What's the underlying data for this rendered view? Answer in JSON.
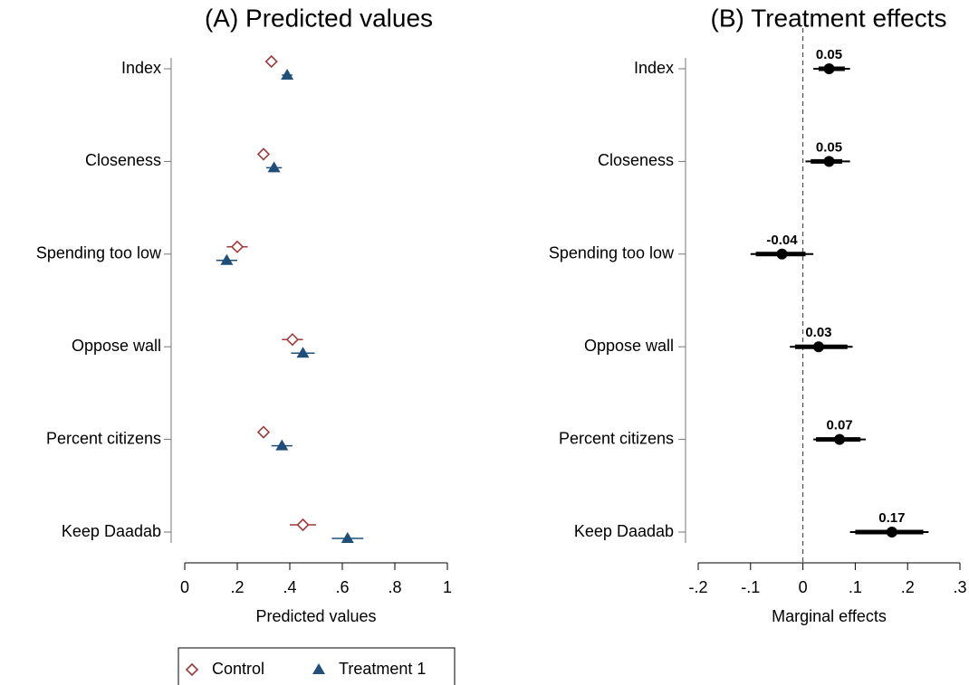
{
  "chart_data": [
    {
      "type": "dot",
      "title": "(A) Predicted values",
      "x_label": "Predicted values",
      "categories": [
        "Index",
        "Closeness",
        "Spending too low",
        "Oppose wall",
        "Percent citizens",
        "Keep Daadab"
      ],
      "xlim": [
        0,
        1
      ],
      "xticks": [
        0,
        {
          "value": 0.2,
          "label": ".2"
        },
        {
          "value": 0.4,
          "label": ".4"
        },
        {
          "value": 0.6,
          "label": ".6"
        },
        {
          "value": 0.8,
          "label": ".8"
        },
        1
      ],
      "legend": "bottom",
      "series": [
        {
          "name": "Control",
          "color": "#9e3a3a",
          "marker": "diamond",
          "values": [
            0.33,
            0.3,
            0.2,
            0.41,
            0.3,
            0.45
          ],
          "errors": [
            0.02,
            0.02,
            0.04,
            0.04,
            0.02,
            0.05
          ]
        },
        {
          "name": "Treatment 1",
          "color": "#1f4e79",
          "marker": "triangle",
          "values": [
            0.39,
            0.34,
            0.16,
            0.45,
            0.37,
            0.62
          ],
          "errors": [
            0.02,
            0.03,
            0.04,
            0.045,
            0.04,
            0.06
          ]
        }
      ]
    },
    {
      "type": "coefficient",
      "title": "(B) Treatment effects",
      "x_label": "Marginal effects",
      "categories": [
        "Index",
        "Closeness",
        "Spending too low",
        "Oppose wall",
        "Percent citizens",
        "Keep Daadab"
      ],
      "xlim": [
        -0.2,
        0.3
      ],
      "xticks": [
        {
          "value": -0.2,
          "label": "-.2"
        },
        {
          "value": -0.1,
          "label": "-.1"
        },
        0,
        {
          "value": 0.1,
          "label": ".1"
        },
        {
          "value": 0.2,
          "label": ".2"
        },
        {
          "value": 0.3,
          "label": ".3"
        }
      ],
      "zero_line": true,
      "color": "#000000",
      "values": [
        0.05,
        0.05,
        -0.04,
        0.03,
        0.07,
        0.17
      ],
      "ci95_low": [
        0.02,
        0.005,
        -0.1,
        -0.025,
        0.02,
        0.09
      ],
      "ci95_high": [
        0.09,
        0.09,
        0.02,
        0.095,
        0.12,
        0.24
      ],
      "ci90_low": [
        0.03,
        0.015,
        -0.09,
        -0.015,
        0.025,
        0.1
      ],
      "ci90_high": [
        0.08,
        0.075,
        0.005,
        0.085,
        0.11,
        0.23
      ]
    }
  ]
}
